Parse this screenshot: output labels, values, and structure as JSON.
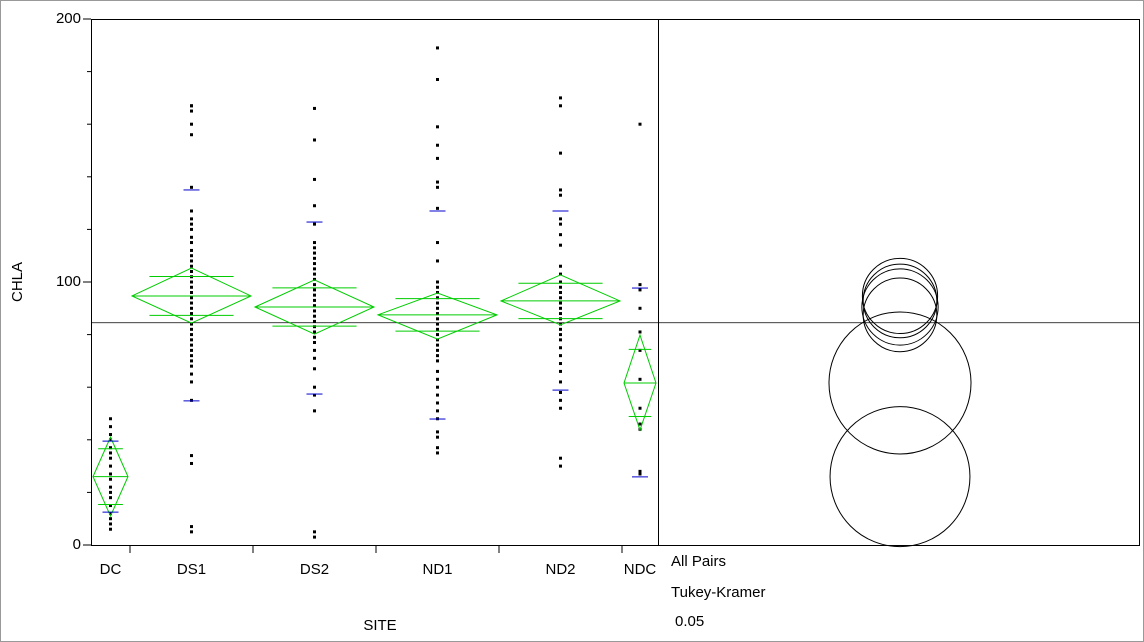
{
  "chart_data": {
    "type": "oneway",
    "x_label": "SITE",
    "y_label": "CHLA",
    "ylim": [
      0,
      200
    ],
    "yticks": [
      0,
      100,
      200
    ],
    "minor_yticks": [
      20,
      40,
      60,
      80,
      120,
      140,
      160,
      180
    ],
    "grand_mean": 84.5,
    "comparison_title": "All Pairs",
    "comparison_method": "Tukey-Kramer",
    "comparison_alpha": "0.05",
    "diamond_color": "#00cc00",
    "sd_color": "#0000cc",
    "point_color": "#000000",
    "categories": [
      "DC",
      "DS1",
      "DS2",
      "ND1",
      "ND2",
      "NDC"
    ],
    "means": [
      26,
      94.7,
      90.5,
      87.5,
      92.8,
      61.6
    ],
    "ci_lower": [
      11,
      84.4,
      80.2,
      78.3,
      83.7,
      43.7
    ],
    "ci_upper": [
      41,
      105.3,
      100.8,
      95.8,
      102.7,
      79.8
    ],
    "sd_lower": [
      12.5,
      54.8,
      57.4,
      47.9,
      58.9,
      25.9
    ],
    "sd_upper": [
      39.5,
      135,
      122.8,
      127,
      127,
      97.7
    ],
    "circle_radius": [
      26.6,
      14.3,
      14.5,
      14,
      14,
      27
    ],
    "points": [
      [
        48,
        45,
        42,
        40,
        37,
        35,
        33,
        30,
        27,
        25,
        22,
        20,
        18,
        15,
        12,
        10,
        8,
        6
      ],
      [
        167,
        167,
        165,
        160,
        156,
        136,
        127,
        124,
        122,
        120,
        117,
        115,
        112,
        110,
        108,
        106,
        104,
        102,
        100,
        98,
        96,
        94,
        92,
        90,
        88,
        86,
        84,
        82,
        80,
        78,
        76,
        74,
        72,
        70,
        68,
        65,
        62,
        55,
        34,
        31,
        7,
        5
      ],
      [
        166,
        154,
        139,
        129,
        122,
        115,
        113,
        111,
        109,
        107,
        105,
        103,
        101,
        99,
        97,
        95,
        93,
        91,
        89,
        87,
        85,
        83,
        81,
        79,
        77,
        74,
        71,
        67,
        60,
        57,
        51,
        5,
        3
      ],
      [
        189,
        177,
        159,
        152,
        147,
        138,
        136,
        128,
        115,
        108,
        100,
        98,
        96,
        94,
        92,
        90,
        88,
        86,
        84,
        82,
        80,
        78,
        76,
        74,
        72,
        70,
        66,
        63,
        60,
        57,
        54,
        51,
        48,
        43,
        41,
        37,
        35
      ],
      [
        170,
        167,
        149,
        135,
        133,
        124,
        122,
        118,
        114,
        106,
        103,
        100,
        98,
        96,
        94,
        92,
        90,
        88,
        86,
        84,
        82,
        80,
        78,
        75,
        72,
        69,
        66,
        62,
        58,
        55,
        52,
        33,
        30
      ],
      [
        160,
        99,
        97,
        90,
        81,
        74,
        63,
        52,
        46,
        44,
        28,
        27
      ]
    ]
  }
}
